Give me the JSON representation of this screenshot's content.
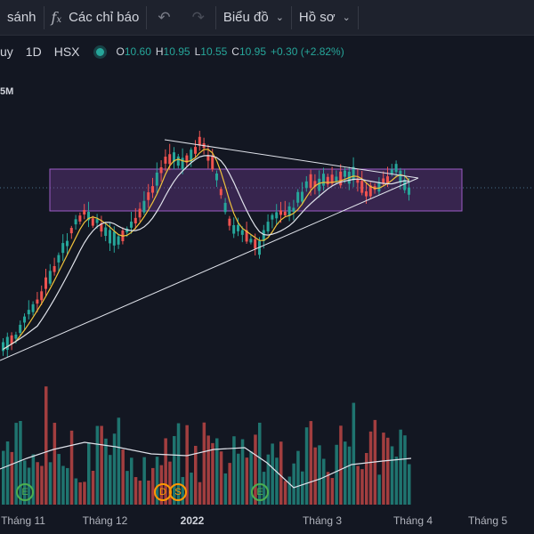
{
  "toolbar": {
    "compare_label": "sánh",
    "indicators_icon": "fx-icon",
    "indicators_label": "Các chỉ báo",
    "undo_icon": "undo-arrow-icon",
    "redo_icon": "redo-arrow-icon",
    "chart_type_label": "Biểu đồ",
    "profile_label": "Hồ sơ",
    "chevron_icon": "chevron-down-icon"
  },
  "legend": {
    "symbol_fragment": "uy",
    "interval": "1D",
    "exchange": "HSX",
    "status_icon": "market-open-dot",
    "open_key": "O",
    "open_val": "10.60",
    "high_key": "H",
    "high_val": "10.95",
    "low_key": "L",
    "low_val": "10.55",
    "close_key": "C",
    "close_val": "10.95",
    "change": "+0.30 (+2.82%)"
  },
  "volume_label": "5M",
  "time_axis": [
    {
      "label": "Tháng 11",
      "bold": false
    },
    {
      "label": "Tháng 12",
      "bold": false
    },
    {
      "label": "2022",
      "bold": true
    },
    {
      "label": "Tháng 3",
      "bold": false
    },
    {
      "label": "Tháng 4",
      "bold": false
    },
    {
      "label": "Tháng 5",
      "bold": false
    }
  ],
  "events": [
    {
      "symbol": "E",
      "color": "#4caf50",
      "fill": "transparent"
    },
    {
      "symbol": "D",
      "color": "#ff9800",
      "fill": "transparent"
    },
    {
      "symbol": "S",
      "color": "#ff9800",
      "fill": "transparent"
    },
    {
      "symbol": "E",
      "color": "#4caf50",
      "fill": "transparent"
    }
  ],
  "colors": {
    "up": "#26a69a",
    "down": "#ef5350",
    "background": "#131722",
    "ma_short": "#f0c23b",
    "ma_long": "#e0e3eb",
    "zone_fill": "#7b3fa0",
    "zone_border": "#9c5cc7"
  }
}
